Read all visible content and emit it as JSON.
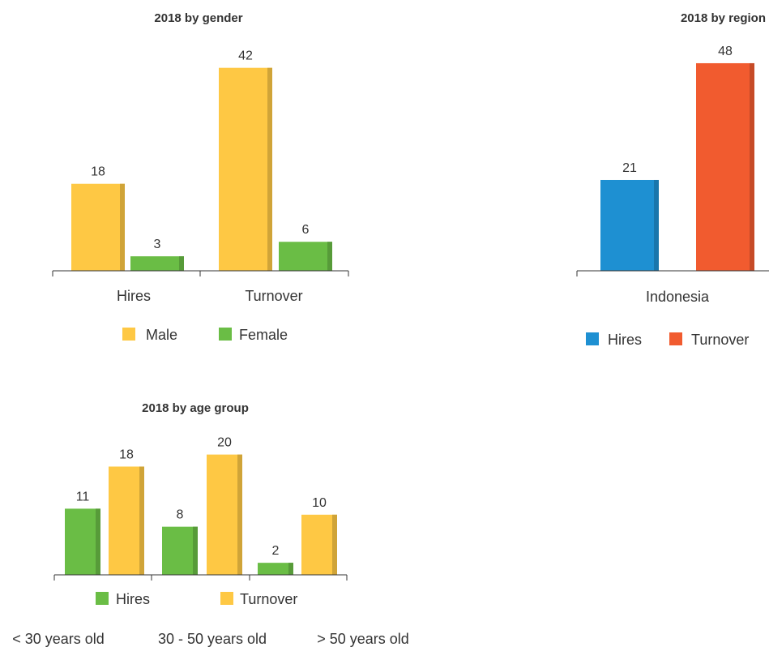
{
  "chart_data": [
    {
      "type": "bar",
      "title": "2018 by gender",
      "categories": [
        "Hires",
        "Turnover"
      ],
      "series": [
        {
          "name": "Male",
          "values": [
            18,
            42
          ]
        },
        {
          "name": "Female",
          "values": [
            3,
            6
          ]
        }
      ],
      "xlabel": "",
      "ylabel": "",
      "ylim": [
        0,
        45
      ],
      "grid": false,
      "legend_position": "bottom",
      "colors": {
        "Male": "#FEC844",
        "Female": "#6ABD45"
      }
    },
    {
      "type": "bar",
      "title": "2018 by region",
      "categories": [
        "Indonesia"
      ],
      "series": [
        {
          "name": "Hires",
          "values": [
            21
          ]
        },
        {
          "name": "Turnover",
          "values": [
            48
          ]
        }
      ],
      "xlabel": "",
      "ylabel": "",
      "ylim": [
        0,
        50
      ],
      "grid": false,
      "legend_position": "bottom",
      "colors": {
        "Hires": "#1E90D2",
        "Turnover": "#F15B2F"
      }
    },
    {
      "type": "bar",
      "title": "2018 by age group",
      "categories": [
        "< 30 years old",
        "30 - 50 years old",
        "> 50 years old"
      ],
      "series": [
        {
          "name": "Hires",
          "values": [
            11,
            8,
            2
          ]
        },
        {
          "name": "Turnover",
          "values": [
            18,
            20,
            10
          ]
        }
      ],
      "xlabel": "",
      "ylabel": "",
      "ylim": [
        0,
        22
      ],
      "grid": false,
      "legend_position": "bottom",
      "colors": {
        "Hires": "#6ABD45",
        "Turnover": "#FEC844"
      }
    }
  ]
}
